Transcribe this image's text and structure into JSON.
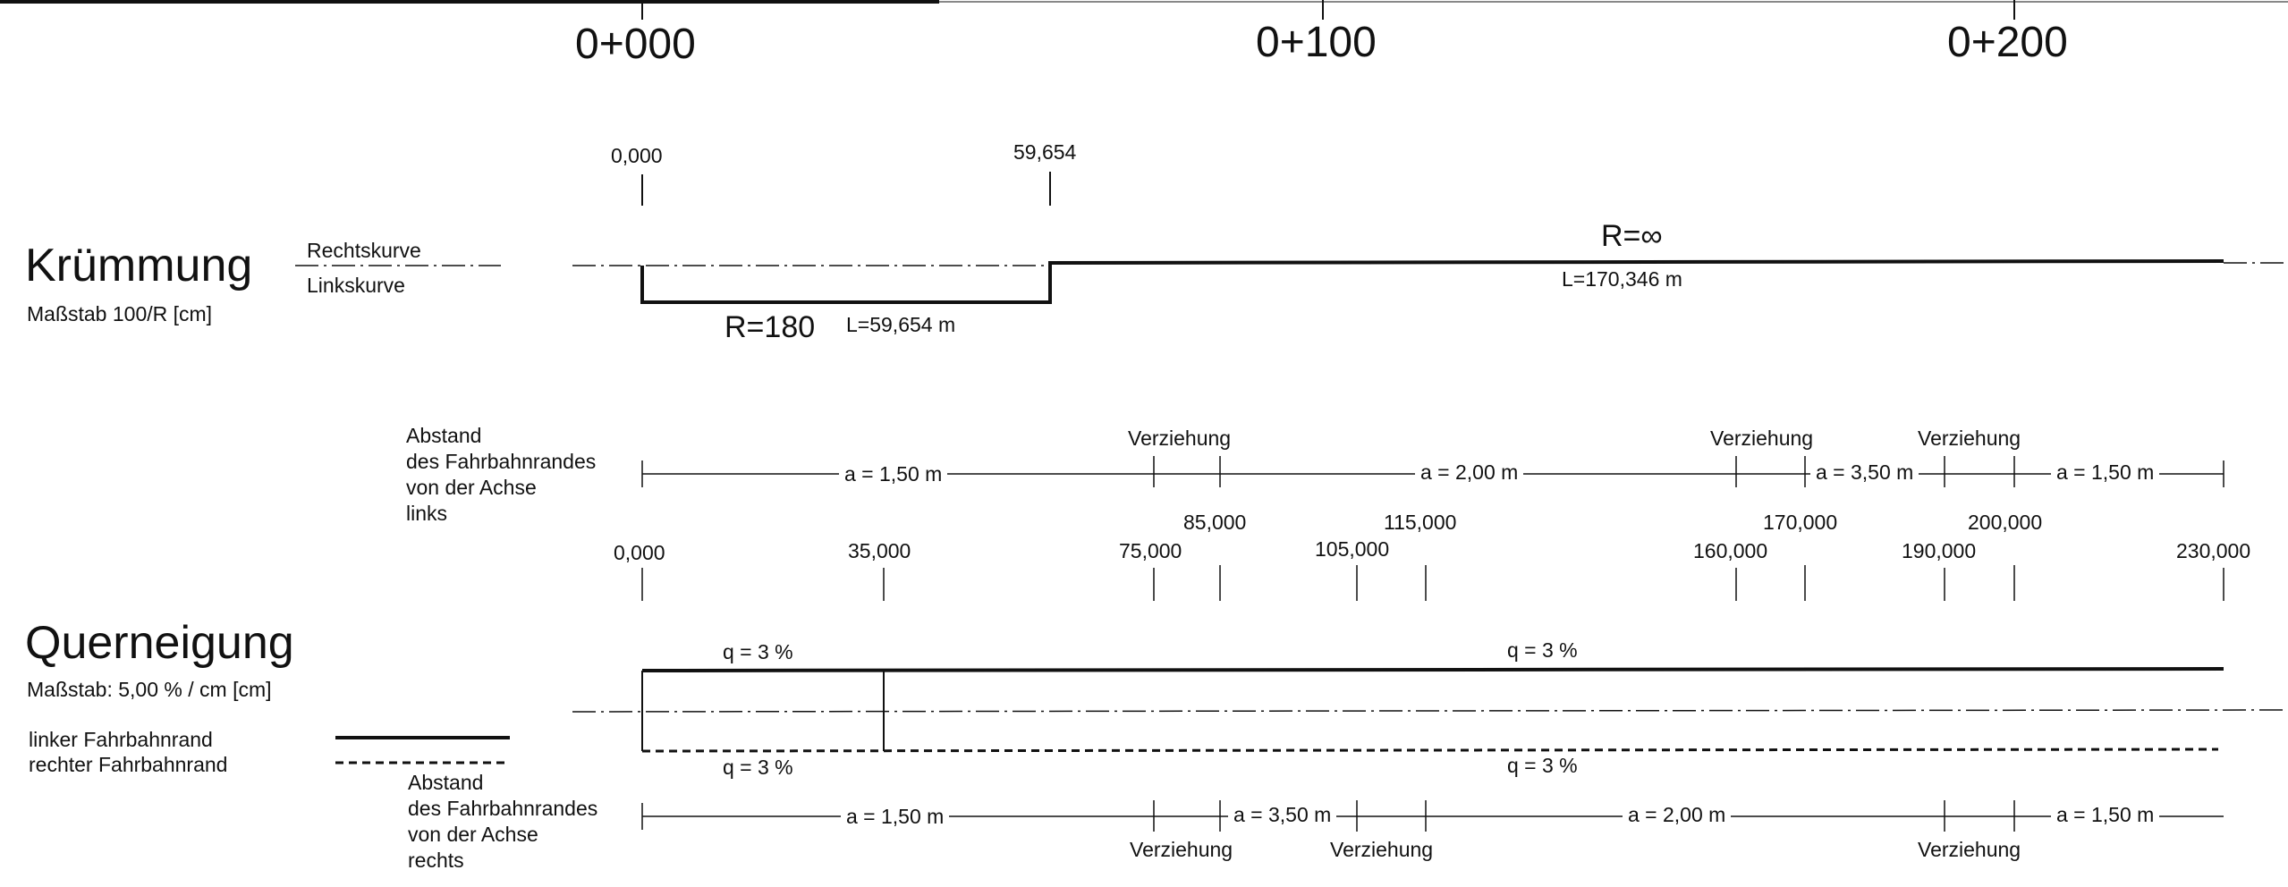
{
  "stations": [
    "0+000",
    "0+100",
    "0+200"
  ],
  "kruemmung": {
    "title": "Krümmung",
    "scale": "Maßstab 100/R [cm]",
    "right_label": "Rechtskurve",
    "left_label": "Linkskurve",
    "marks": [
      "0,000",
      "59,654"
    ],
    "r1": "R=180",
    "l1": "L=59,654 m",
    "r2": "R=∞",
    "l2": "L=170,346 m"
  },
  "abstand_links": {
    "label": [
      "Abstand",
      "des Fahrbahnrandes",
      "von der Achse",
      "links"
    ],
    "segments": [
      "a = 1,50 m",
      "a = 2,00 m",
      "a = 3,50 m",
      "a = 1,50 m"
    ],
    "transition": "Verziehung"
  },
  "stations_top": [
    "85,000",
    "115,000",
    "170,000",
    "200,000"
  ],
  "stations_bottom": [
    "0,000",
    "35,000",
    "75,000",
    "105,000",
    "160,000",
    "190,000",
    "230,000"
  ],
  "querneigung": {
    "title": "Querneigung",
    "scale": "Maßstab: 5,00 % / cm [cm]",
    "legend_left": "linker Fahrbahnrand",
    "legend_right": "rechter Fahrbahnrand",
    "q_top_1": "q = 3 %",
    "q_top_2": "q = 3 %",
    "q_bot_1": "q = 3 %",
    "q_bot_2": "q = 3 %"
  },
  "abstand_rechts": {
    "label": [
      "Abstand",
      "des Fahrbahnrandes",
      "von der Achse",
      "rechts"
    ],
    "segments": [
      "a = 1,50 m",
      "a = 3,50 m",
      "a = 2,00 m",
      "a = 1,50 m"
    ],
    "transition": "Verziehung"
  },
  "colors": {
    "line": "#111111",
    "paper": "#ffffff"
  }
}
